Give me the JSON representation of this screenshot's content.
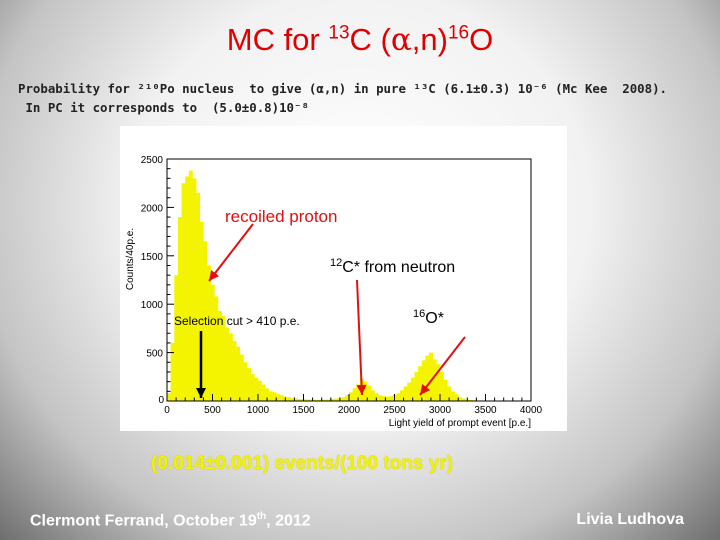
{
  "slide": {
    "title_prefix": "MC for ",
    "title_sup1": "13",
    "title_mid": "C (",
    "title_alpha": "α",
    "title_mid2": ",n)",
    "title_sup2": "16",
    "title_end": "O",
    "subtitle_line1": "Probability for ²¹⁰Po nucleus  to give (α,n) in pure ¹³C (6.1±0.3) 10⁻⁶ (Mc Kee  2008).",
    "subtitle_line2": " In PC it corresponds to  (5.0±0.8)10⁻⁸",
    "result": "(0.014±0.001)  events/(100 tons yr)",
    "footer_left_prefix": "Clermont Ferrand, October 19",
    "footer_left_sup": "th",
    "footer_left_suffix": ", 2012",
    "footer_right": "Livia Ludhova"
  },
  "annotations": {
    "recoiled_proton": "recoiled proton",
    "c12_sup": "12",
    "c12_text": "C* from neutron",
    "o16_sup": "16",
    "o16_text": "O*",
    "selection_cut": "Selection cut > 410 p.e."
  },
  "colors": {
    "title": "#e00000",
    "histogram_fill": "#f4f400",
    "arrow_red": "#e01010",
    "arrow_black": "#000000",
    "result_text": "#f3f300"
  },
  "chart_data": {
    "type": "area",
    "xlabel": "Light yield of prompt event [p.e.]",
    "ylabel": "Counts/40p.e.",
    "xlim": [
      0,
      4000
    ],
    "ylim": [
      0,
      2500
    ],
    "xticks": [
      0,
      500,
      1000,
      1500,
      2000,
      2500,
      3000,
      3500,
      4000
    ],
    "yticks": [
      500,
      1000,
      1500,
      2000,
      2500
    ],
    "x": [
      0,
      40,
      80,
      120,
      160,
      200,
      240,
      280,
      320,
      360,
      400,
      440,
      480,
      520,
      560,
      600,
      640,
      680,
      720,
      760,
      800,
      840,
      880,
      920,
      960,
      1000,
      1040,
      1080,
      1120,
      1160,
      1200,
      1240,
      1280,
      1320,
      1360,
      1400,
      1440,
      1480,
      1520,
      1560,
      1600,
      1640,
      1680,
      1720,
      1760,
      1800,
      1840,
      1880,
      1920,
      1960,
      2000,
      2040,
      2080,
      2120,
      2160,
      2200,
      2240,
      2280,
      2320,
      2360,
      2400,
      2440,
      2480,
      2520,
      2560,
      2600,
      2640,
      2680,
      2720,
      2760,
      2800,
      2840,
      2880,
      2920,
      2960,
      3000,
      3040,
      3080,
      3120,
      3160,
      3200,
      3240,
      3280,
      3320,
      3360,
      3400,
      3440,
      3480
    ],
    "values": [
      80,
      600,
      1300,
      1900,
      2250,
      2320,
      2380,
      2300,
      2150,
      1850,
      1650,
      1400,
      1200,
      1080,
      930,
      880,
      760,
      700,
      620,
      560,
      480,
      400,
      340,
      280,
      240,
      210,
      170,
      130,
      100,
      90,
      70,
      60,
      45,
      40,
      30,
      25,
      20,
      20,
      15,
      15,
      12,
      12,
      12,
      15,
      15,
      20,
      25,
      30,
      40,
      60,
      90,
      130,
      170,
      230,
      200,
      160,
      110,
      80,
      60,
      50,
      45,
      50,
      60,
      80,
      110,
      150,
      190,
      240,
      300,
      360,
      420,
      470,
      500,
      430,
      380,
      300,
      220,
      150,
      100,
      70,
      40,
      25,
      15,
      10,
      8,
      5,
      3,
      0
    ]
  }
}
